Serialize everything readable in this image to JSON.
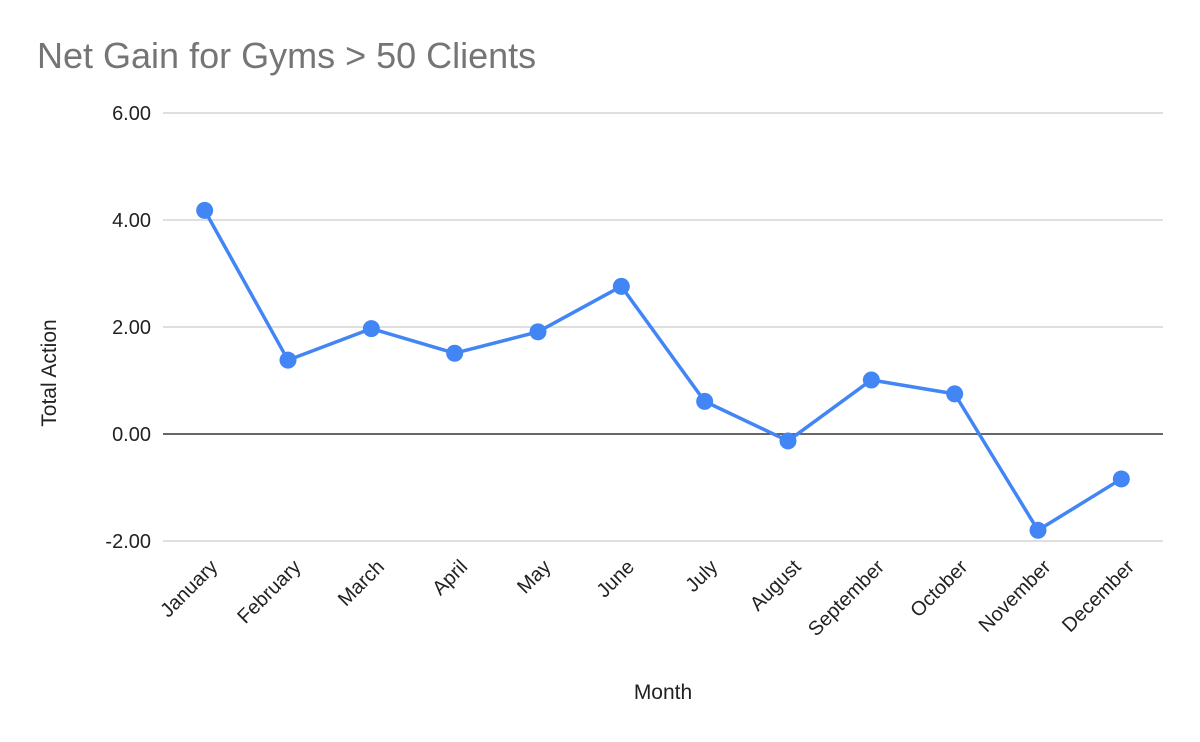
{
  "chart_data": {
    "type": "line",
    "title": "Net Gain for Gyms > 50 Clients",
    "xlabel": "Month",
    "ylabel": "Total Action",
    "categories": [
      "January",
      "February",
      "March",
      "April",
      "May",
      "June",
      "July",
      "August",
      "September",
      "October",
      "November",
      "December"
    ],
    "series": [
      {
        "color": "#4285f4",
        "values": [
          4.18,
          1.38,
          1.97,
          1.51,
          1.91,
          2.76,
          0.61,
          -0.13,
          1.01,
          0.75,
          -1.8,
          -0.84
        ]
      }
    ],
    "ylim": [
      -2,
      6
    ],
    "yticks": [
      "-2.00",
      "0.00",
      "2.00",
      "4.00",
      "6.00"
    ],
    "grid": true
  }
}
